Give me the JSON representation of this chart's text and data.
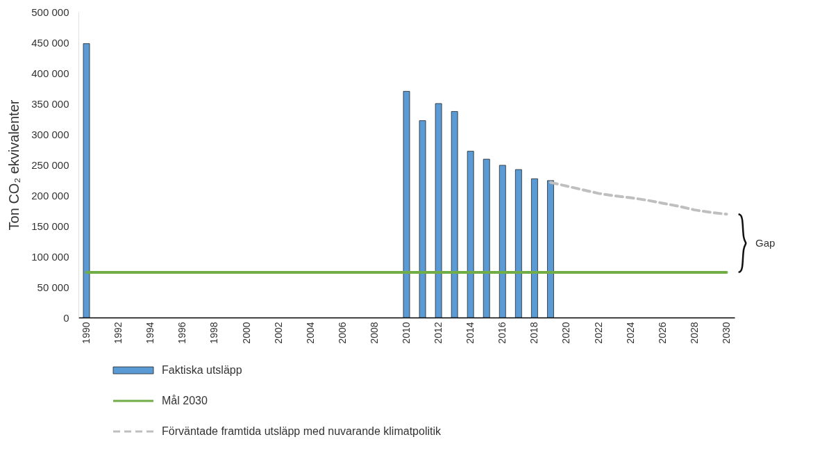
{
  "chart_data": {
    "type": "bar",
    "ylabel": "Ton CO₂ ekvivalenter",
    "xlim": [
      1989.5,
      2030.5
    ],
    "xticks": [
      1990,
      1992,
      1994,
      1996,
      1998,
      2000,
      2002,
      2004,
      2006,
      2008,
      2010,
      2012,
      2014,
      2016,
      2018,
      2020,
      2022,
      2024,
      2026,
      2028,
      2030
    ],
    "ylim": [
      0,
      500000
    ],
    "yticks": [
      {
        "value": 0,
        "label": "0"
      },
      {
        "value": 50000,
        "label": "50 000"
      },
      {
        "value": 100000,
        "label": "100 000"
      },
      {
        "value": 150000,
        "label": "150 000"
      },
      {
        "value": 200000,
        "label": "200 000"
      },
      {
        "value": 250000,
        "label": "250 000"
      },
      {
        "value": 300000,
        "label": "300 000"
      },
      {
        "value": 350000,
        "label": "350 000"
      },
      {
        "value": 400000,
        "label": "400 000"
      },
      {
        "value": 450000,
        "label": "450 000"
      },
      {
        "value": 500000,
        "label": "500 000"
      }
    ],
    "series": [
      {
        "name": "Faktiska utsläpp",
        "color": "#5b9bd5",
        "x": [
          1990,
          2010,
          2011,
          2012,
          2013,
          2014,
          2015,
          2016,
          2017,
          2018,
          2019
        ],
        "values": [
          448000,
          370000,
          322000,
          350000,
          337000,
          272000,
          259000,
          249000,
          242000,
          227000,
          224000
        ]
      },
      {
        "name": "Mål 2030",
        "type": "line",
        "color": "#70ad47",
        "line_style": "solid",
        "x": [
          1990,
          2030
        ],
        "values": [
          74000,
          74000
        ]
      },
      {
        "name": "Förväntade framtida utsläpp med nuvarande klimatpolitik",
        "type": "line",
        "color": "#bfbfbf",
        "line_style": "dashed",
        "x": [
          2019,
          2020,
          2021,
          2022,
          2023,
          2024,
          2025,
          2026,
          2027,
          2028,
          2029,
          2030
        ],
        "values": [
          221000,
          215000,
          209000,
          203000,
          199000,
          196000,
          192000,
          187000,
          182000,
          176000,
          172000,
          169000
        ]
      }
    ],
    "annotations": [
      "Gap"
    ],
    "grid": false,
    "legend": "bottom"
  }
}
